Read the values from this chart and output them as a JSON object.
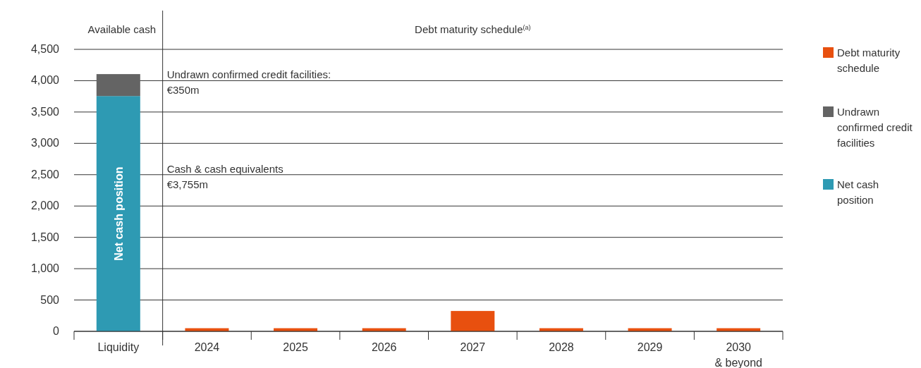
{
  "chart_data": {
    "type": "bar",
    "stacked": true,
    "categories": [
      "Liquidity",
      "2024",
      "2025",
      "2026",
      "2027",
      "2028",
      "2029",
      "2030\n& beyond"
    ],
    "series": [
      {
        "name": "Net cash position",
        "color": "#2e9ab3",
        "values": [
          3755,
          null,
          null,
          null,
          null,
          null,
          null,
          null
        ]
      },
      {
        "name": "Undrawn confirmed credit facilities",
        "color": "#646464",
        "values": [
          350,
          null,
          null,
          null,
          null,
          null,
          null,
          null
        ]
      },
      {
        "name": "Debt maturity schedule",
        "color": "#e8500f",
        "values": [
          null,
          50,
          50,
          50,
          325,
          50,
          50,
          50
        ]
      }
    ],
    "ylim": [
      0,
      4500
    ],
    "yticks": [
      {
        "value": 0,
        "label": "0"
      },
      {
        "value": 500,
        "label": "500"
      },
      {
        "value": 1000,
        "label": "1,000"
      },
      {
        "value": 1500,
        "label": "1,500"
      },
      {
        "value": 2000,
        "label": "2,000"
      },
      {
        "value": 2500,
        "label": "2,500"
      },
      {
        "value": 3000,
        "label": "3,000"
      },
      {
        "value": 3500,
        "label": "3,500"
      },
      {
        "value": 4000,
        "label": "4,000"
      },
      {
        "value": 4500,
        "label": "4,500"
      }
    ],
    "grid": "y",
    "legend": "right",
    "annotations": [
      "Available cash",
      "Debt maturity schedule$^{(a)}$",
      "Undrawn confirmed credit facilities:\n€350m",
      "Cash & cash equivalents\n€3,755m"
    ]
  }
}
